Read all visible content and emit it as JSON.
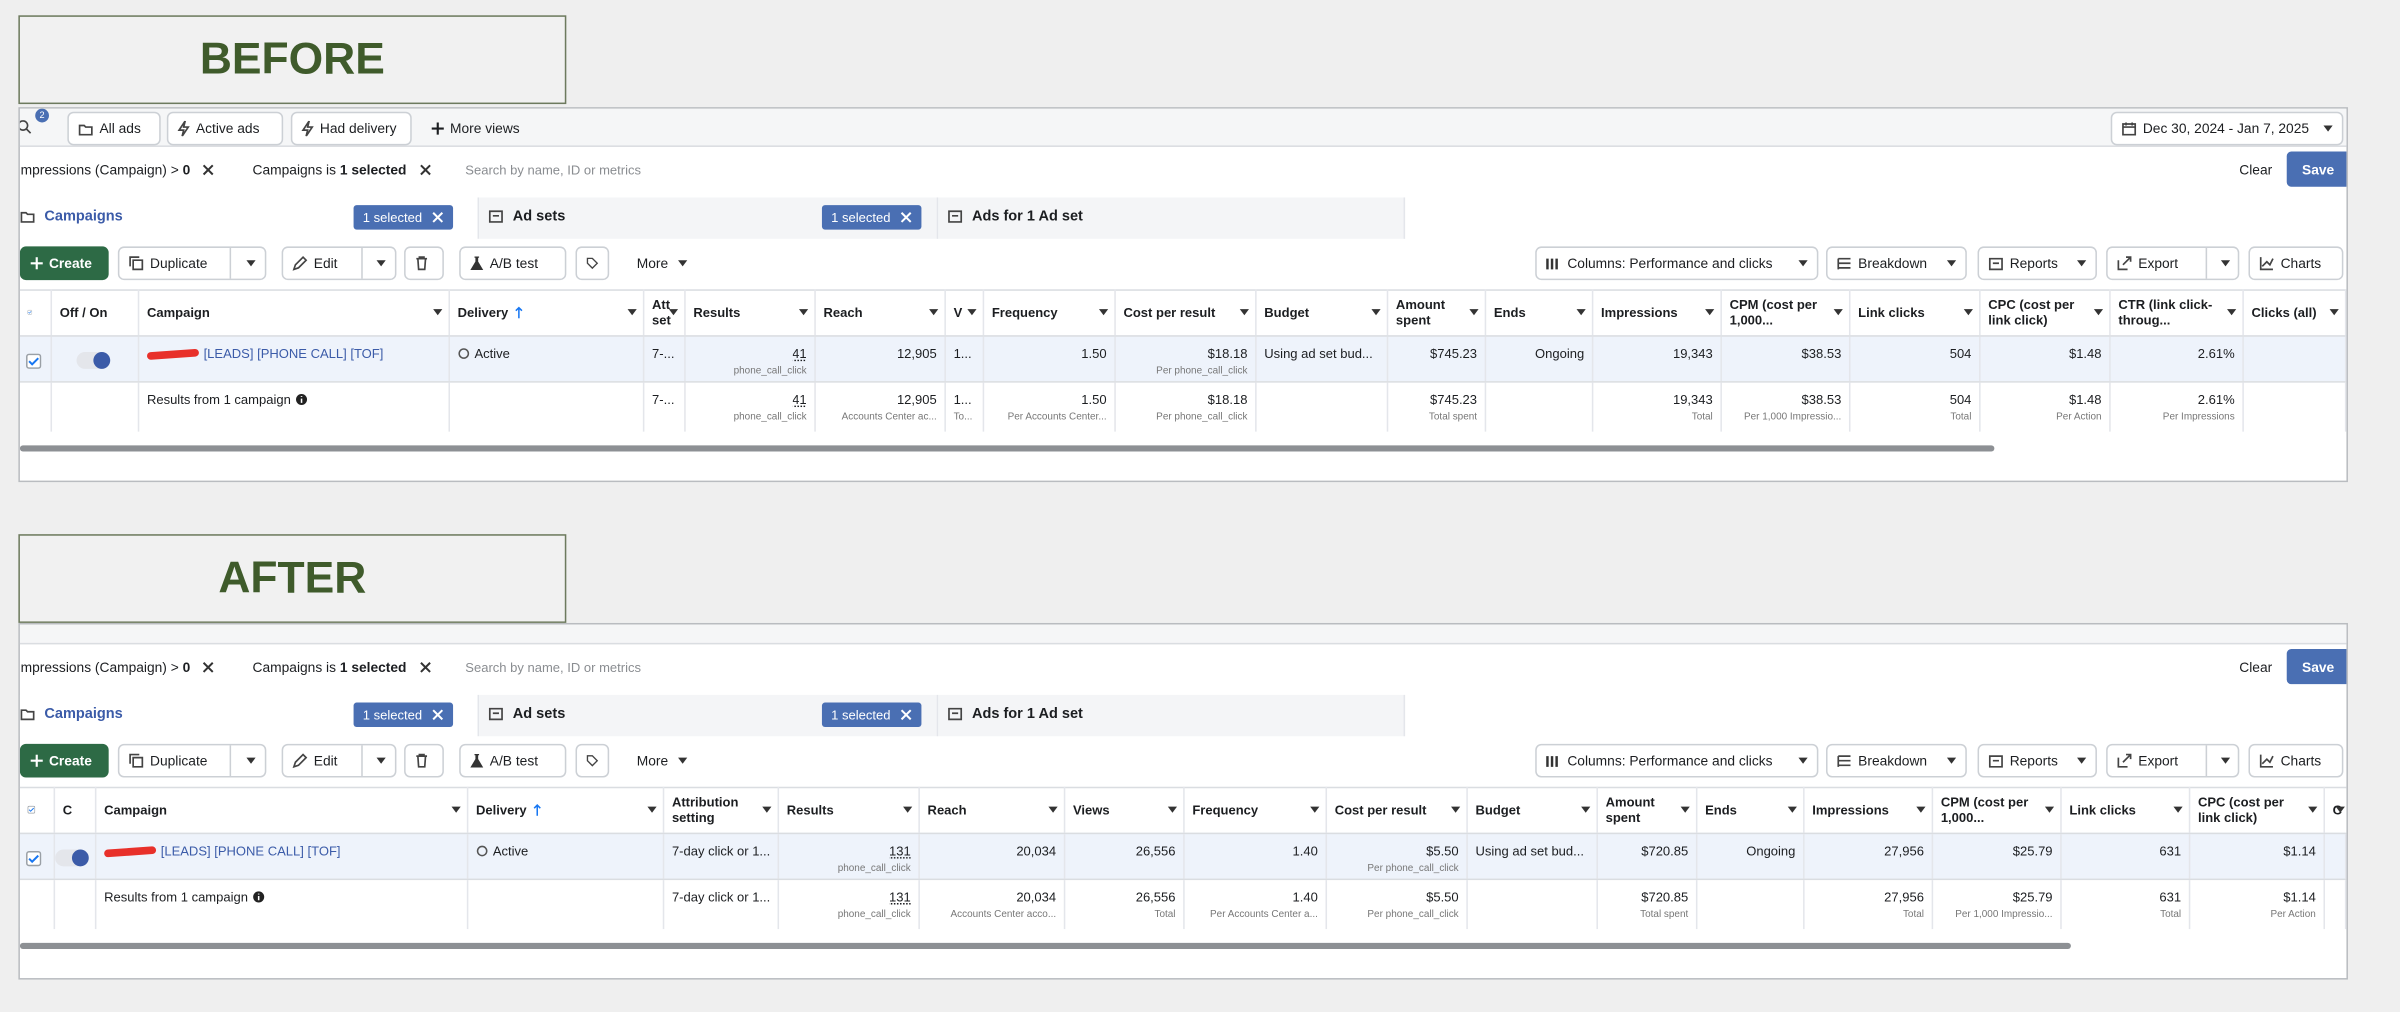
{
  "panels": [
    {
      "label": "BEFORE",
      "top_bar": {
        "badge": "2",
        "views": [
          "All ads",
          "Active ads",
          "Had delivery",
          "More views"
        ],
        "date_range": "Dec 30, 2024 - Jan 7, 2025"
      },
      "filters": [
        {
          "text": "Impressions (Campaign) > ",
          "bold": "0"
        },
        {
          "text": "Campaigns is ",
          "bold": "1 selected"
        }
      ],
      "search_placeholder": "Search by name, ID or metrics",
      "clear": "Clear",
      "save": "Save",
      "tabs": [
        {
          "name": "Campaigns",
          "badge": "1 selected"
        },
        {
          "name": "Ad sets",
          "badge": "1 selected"
        },
        {
          "name": "Ads for 1 Ad set"
        }
      ],
      "actions": {
        "left": [
          "Create",
          "Duplicate",
          "Edit",
          "A/B test",
          "More"
        ],
        "right": [
          "Columns: Performance and clicks",
          "Breakdown",
          "Reports",
          "Export",
          "Charts"
        ]
      },
      "columns": [
        null,
        "Off / On",
        "Campaign",
        "Delivery",
        "Att set",
        "Results",
        "Reach",
        "V",
        "Frequency",
        "Cost per result",
        "Budget",
        "Amount spent",
        "Ends",
        "Impressions",
        "CPM (cost per 1,000...",
        "Link clicks",
        "CPC (cost per link click)",
        "CTR (link click-throug...",
        "Clicks (all)"
      ],
      "rows": [
        [
          null,
          null,
          {
            "main": "[LEADS] [PHONE CALL] [TOF]"
          },
          {
            "main": "Active"
          },
          {
            "main": "7-..."
          },
          {
            "main": "41",
            "sub": "phone_call_click"
          },
          {
            "main": "12,905"
          },
          {
            "main": "1..."
          },
          {
            "main": "1.50"
          },
          {
            "main": "$18.18",
            "sub": "Per phone_call_click"
          },
          {
            "main": "Using ad set bud..."
          },
          {
            "main": "$745.23"
          },
          {
            "main": "Ongoing"
          },
          {
            "main": "19,343"
          },
          {
            "main": "$38.53"
          },
          {
            "main": "504"
          },
          {
            "main": "$1.48"
          },
          {
            "main": "2.61%"
          },
          null
        ],
        [
          null,
          null,
          {
            "main": "Results from 1 campaign"
          },
          null,
          {
            "main": "7-..."
          },
          {
            "main": "41",
            "sub": "phone_call_click"
          },
          {
            "main": "12,905",
            "sub": "Accounts Center ac..."
          },
          {
            "main": "1...",
            "sub": "To..."
          },
          {
            "main": "1.50",
            "sub": "Per Accounts Center..."
          },
          {
            "main": "$18.18",
            "sub": "Per phone_call_click"
          },
          null,
          {
            "main": "$745.23",
            "sub": "Total spent"
          },
          null,
          {
            "main": "19,343",
            "sub": "Total"
          },
          {
            "main": "$38.53",
            "sub": "Per 1,000 Impressio..."
          },
          {
            "main": "504",
            "sub": "Total"
          },
          {
            "main": "$1.48",
            "sub": "Per Action"
          },
          {
            "main": "2.61%",
            "sub": "Per Impressions"
          },
          null
        ]
      ]
    },
    {
      "label": "AFTER",
      "filters": [
        {
          "text": "Impressions (Campaign) > ",
          "bold": "0"
        },
        {
          "text": "Campaigns is ",
          "bold": "1 selected"
        }
      ],
      "search_placeholder": "Search by name, ID or metrics",
      "clear": "Clear",
      "save": "Save",
      "tabs": [
        {
          "name": "Campaigns",
          "badge": "1 selected"
        },
        {
          "name": "Ad sets",
          "badge": "1 selected"
        },
        {
          "name": "Ads for 1 Ad set"
        }
      ],
      "actions": {
        "left": [
          "Create",
          "Duplicate",
          "Edit",
          "A/B test",
          "More"
        ],
        "right": [
          "Columns: Performance and clicks",
          "Breakdown",
          "Reports",
          "Export",
          "Charts"
        ]
      },
      "columns": [
        null,
        "C",
        "Campaign",
        "Delivery",
        "Attribution setting",
        "Results",
        "Reach",
        "Views",
        "Frequency",
        "Cost per result",
        "Budget",
        "Amount spent",
        "Ends",
        "Impressions",
        "CPM (cost per 1,000...",
        "Link clicks",
        "CPC (cost per link click)",
        "C"
      ],
      "rows": [
        [
          null,
          null,
          {
            "main": "[LEADS] [PHONE CALL] [TOF]"
          },
          {
            "main": "Active"
          },
          {
            "main": "7-day click or 1..."
          },
          {
            "main": "131",
            "sub": "phone_call_click"
          },
          {
            "main": "20,034"
          },
          {
            "main": "26,556"
          },
          {
            "main": "1.40"
          },
          {
            "main": "$5.50",
            "sub": "Per phone_call_click"
          },
          {
            "main": "Using ad set bud..."
          },
          {
            "main": "$720.85"
          },
          {
            "main": "Ongoing"
          },
          {
            "main": "27,956"
          },
          {
            "main": "$25.79"
          },
          {
            "main": "631"
          },
          {
            "main": "$1.14"
          },
          null
        ],
        [
          null,
          null,
          {
            "main": "Results from 1 campaign"
          },
          null,
          {
            "main": "7-day click or 1..."
          },
          {
            "main": "131",
            "sub": "phone_call_click"
          },
          {
            "main": "20,034",
            "sub": "Accounts Center acco..."
          },
          {
            "main": "26,556",
            "sub": "Total"
          },
          {
            "main": "1.40",
            "sub": "Per Accounts Center a..."
          },
          {
            "main": "$5.50",
            "sub": "Per phone_call_click"
          },
          null,
          {
            "main": "$720.85",
            "sub": "Total spent"
          },
          null,
          {
            "main": "27,956",
            "sub": "Total"
          },
          {
            "main": "$25.79",
            "sub": "Per 1,000 Impressio..."
          },
          {
            "main": "631",
            "sub": "Total"
          },
          {
            "main": "$1.14",
            "sub": "Per Action"
          },
          null
        ]
      ]
    }
  ]
}
